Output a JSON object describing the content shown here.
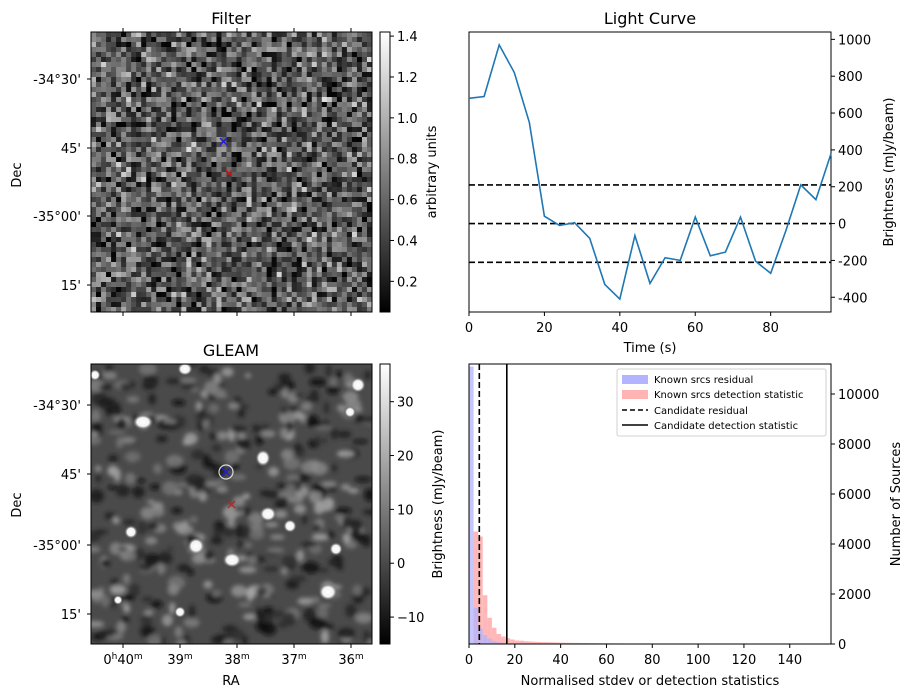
{
  "chart_data": [
    {
      "type": "heatmap",
      "title": "Filter",
      "ylabel": "Dec",
      "xlabel": "",
      "y_ticks": [
        "-34°30'",
        "45'",
        "-35°00'",
        "15'"
      ],
      "colorbar": {
        "label": "arbitrary units",
        "ticks": [
          "0.2",
          "0.4",
          "0.6",
          "0.8",
          "1.0",
          "1.2",
          "1.4"
        ],
        "range": [
          0.05,
          1.42
        ],
        "cmap": "gray"
      },
      "markers": [
        {
          "symbol": "x",
          "color": "#1f1fd0",
          "label": "blue"
        },
        {
          "symbol": "x",
          "color": "#e01010",
          "label": "red"
        }
      ]
    },
    {
      "type": "line",
      "title": "Light Curve",
      "xlabel": "Time (s)",
      "ylabel": "Brightness (mJy/beam)",
      "xlim": [
        0,
        96
      ],
      "ylim": [
        -480,
        1040
      ],
      "x_ticks": [
        "0",
        "20",
        "40",
        "60",
        "80"
      ],
      "y_ticks": [
        "-400",
        "-200",
        "0",
        "200",
        "400",
        "600",
        "800",
        "1000"
      ],
      "series": [
        {
          "color": "#1f77b4",
          "x": [
            0,
            4,
            8,
            12,
            16,
            20,
            24,
            28,
            32,
            36,
            40,
            44,
            48,
            52,
            56,
            60,
            64,
            68,
            72,
            76,
            80,
            84,
            88,
            92,
            96
          ],
          "y": [
            680,
            690,
            970,
            820,
            550,
            40,
            -10,
            5,
            -80,
            -330,
            -410,
            -65,
            -325,
            -185,
            -200,
            35,
            -175,
            -155,
            35,
            -205,
            -270,
            -40,
            210,
            130,
            380
          ]
        }
      ],
      "hlines": [
        {
          "y": 210,
          "style": "dashed"
        },
        {
          "y": 0,
          "style": "dashed"
        },
        {
          "y": -210,
          "style": "dashed"
        }
      ]
    },
    {
      "type": "heatmap",
      "title": "GLEAM",
      "xlabel": "RA",
      "ylabel": "Dec",
      "x_ticks": [
        {
          "main": "0",
          "sup1": "h",
          "mid": "40",
          "sup2": "m"
        },
        {
          "main": "39",
          "sup2": "m"
        },
        {
          "main": "38",
          "sup2": "m"
        },
        {
          "main": "37",
          "sup2": "m"
        },
        {
          "main": "36",
          "sup2": "m"
        }
      ],
      "y_ticks": [
        "-34°30'",
        "45'",
        "-35°00'",
        "15'"
      ],
      "colorbar": {
        "label": "",
        "ticks": [
          "−10",
          "0",
          "10",
          "20",
          "30"
        ],
        "range": [
          -15,
          37
        ],
        "cmap": "gray"
      }
    },
    {
      "type": "bar",
      "title": "",
      "xlabel": "Normalised stdev or detection statistics",
      "ylabel": "Brightness (mJy/beam)",
      "ylabel2": "Number of Sources",
      "xlim": [
        0,
        158
      ],
      "ylim": [
        0,
        11200
      ],
      "x_ticks": [
        "0",
        "20",
        "40",
        "60",
        "80",
        "100",
        "120",
        "140"
      ],
      "y_ticks": [
        "0",
        "2000",
        "4000",
        "6000",
        "8000",
        "10000"
      ],
      "bin_width": 2,
      "series": [
        {
          "name": "Known srcs residual",
          "color": "#b3b3ff",
          "values": [
            11100,
            1450,
            620,
            360,
            220,
            120,
            70,
            40,
            25,
            15,
            10,
            8,
            6,
            5,
            4
          ]
        },
        {
          "name": "Known srcs detection statistic",
          "color": "#ffb3b3",
          "values": [
            0,
            4500,
            4300,
            1950,
            1050,
            650,
            400,
            300,
            230,
            180,
            140,
            130,
            110,
            100,
            90,
            80,
            75,
            70,
            65,
            60,
            55,
            50,
            45,
            45,
            40,
            40,
            35,
            35,
            30,
            30,
            30,
            25,
            25,
            25,
            20,
            20,
            20,
            18,
            18,
            15,
            15,
            15,
            12,
            12,
            12,
            10,
            10,
            10,
            10,
            8,
            8,
            8,
            8,
            6,
            6,
            6,
            6,
            5,
            5,
            5,
            5,
            5,
            4,
            4,
            4,
            4,
            4,
            3,
            3,
            3,
            3,
            3,
            3,
            3,
            3,
            3,
            2,
            2,
            2
          ]
        }
      ],
      "vlines": [
        {
          "name": "Candidate residual",
          "x": 4.5,
          "style": "dashed"
        },
        {
          "name": "Candidate detection statistic",
          "x": 16.5,
          "style": "solid"
        }
      ],
      "legend_position": "top-right"
    }
  ]
}
